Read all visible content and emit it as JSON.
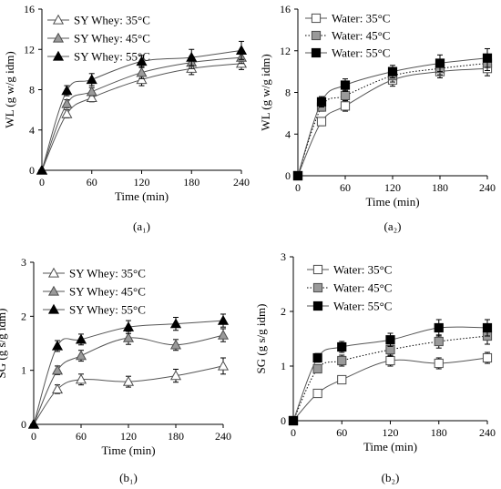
{
  "chart_data": [
    {
      "id": "a1",
      "type": "line",
      "panel_label": "(a₁)",
      "xlabel": "Time (min)",
      "ylabel": "WL (g w/g idm)",
      "xlim": [
        0,
        240
      ],
      "ylim": [
        0,
        16
      ],
      "x_ticks": [
        0,
        60,
        120,
        180,
        240
      ],
      "y_ticks": [
        0,
        4,
        8,
        12,
        16
      ],
      "grid": false,
      "legend_position": "top-left",
      "x": [
        0,
        30,
        60,
        120,
        180,
        240
      ],
      "series": [
        {
          "name": "SY Whey: 35°C",
          "marker": "triangle",
          "fill": "#ffffff",
          "line_style": "solid",
          "values": [
            0,
            5.6,
            7.2,
            9.0,
            10.1,
            10.6
          ],
          "errors": [
            0,
            0.4,
            0.4,
            0.6,
            0.6,
            0.6
          ]
        },
        {
          "name": "SY Whey: 45°C",
          "marker": "triangle",
          "fill": "#9a9a9a",
          "line_style": "solid",
          "values": [
            0,
            6.6,
            7.8,
            9.7,
            10.7,
            11.2
          ],
          "errors": [
            0,
            0.4,
            0.4,
            0.6,
            0.6,
            0.6
          ]
        },
        {
          "name": "SY Whey: 55°C",
          "marker": "triangle",
          "fill": "#000000",
          "line_style": "solid",
          "values": [
            0,
            7.9,
            9.0,
            10.8,
            11.2,
            11.9
          ],
          "errors": [
            0,
            0.5,
            0.6,
            0.6,
            0.8,
            0.9
          ]
        }
      ]
    },
    {
      "id": "a2",
      "type": "line",
      "panel_label": "(a₂)",
      "xlabel": "Time (min)",
      "ylabel": "WL (g w/g idm)",
      "xlim": [
        0,
        240
      ],
      "ylim": [
        0,
        16
      ],
      "x_ticks": [
        0,
        60,
        120,
        180,
        240
      ],
      "y_ticks": [
        0,
        4,
        8,
        12,
        16
      ],
      "grid": false,
      "legend_position": "top-left",
      "x": [
        0,
        30,
        60,
        120,
        180,
        240
      ],
      "series": [
        {
          "name": "Water: 35°C",
          "marker": "square",
          "fill": "#ffffff",
          "line_style": "solid",
          "values": [
            0,
            5.2,
            6.7,
            9.2,
            10.0,
            10.3
          ],
          "errors": [
            0,
            0.4,
            0.5,
            0.6,
            0.6,
            0.7
          ]
        },
        {
          "name": "Water: 45°C",
          "marker": "square",
          "fill": "#9a9a9a",
          "line_style": "dotted",
          "values": [
            0,
            6.6,
            7.7,
            9.6,
            10.3,
            10.8
          ],
          "errors": [
            0,
            0.4,
            0.5,
            0.6,
            0.6,
            0.7
          ]
        },
        {
          "name": "Water: 55°C",
          "marker": "square",
          "fill": "#000000",
          "line_style": "solid",
          "values": [
            0,
            7.1,
            8.7,
            10.0,
            10.8,
            11.3
          ],
          "errors": [
            0,
            0.5,
            0.6,
            0.6,
            0.8,
            0.9
          ]
        }
      ]
    },
    {
      "id": "b1",
      "type": "line",
      "panel_label": "(b₁)",
      "xlabel": "Time (min)",
      "ylabel": "SG (g s/g idm)",
      "xlim": [
        0,
        240
      ],
      "ylim": [
        0,
        3
      ],
      "x_ticks": [
        0,
        60,
        120,
        180,
        240
      ],
      "y_ticks": [
        0,
        1,
        2,
        3
      ],
      "grid": false,
      "legend_position": "top-left",
      "x": [
        0,
        30,
        60,
        120,
        180,
        240
      ],
      "series": [
        {
          "name": "SY Whey: 35°C",
          "marker": "triangle",
          "fill": "#ffffff",
          "line_style": "solid",
          "values": [
            0,
            0.65,
            0.83,
            0.79,
            0.9,
            1.08
          ],
          "errors": [
            0,
            0.08,
            0.1,
            0.1,
            0.12,
            0.15
          ]
        },
        {
          "name": "SY Whey: 45°C",
          "marker": "triangle",
          "fill": "#9a9a9a",
          "line_style": "solid",
          "values": [
            0,
            1.0,
            1.27,
            1.6,
            1.47,
            1.65
          ],
          "errors": [
            0,
            0.08,
            0.1,
            0.12,
            0.1,
            0.12
          ]
        },
        {
          "name": "SY Whey: 55°C",
          "marker": "triangle",
          "fill": "#000000",
          "line_style": "solid",
          "values": [
            0,
            1.45,
            1.57,
            1.8,
            1.86,
            1.92
          ],
          "errors": [
            0,
            0.1,
            0.1,
            0.12,
            0.12,
            0.12
          ]
        }
      ]
    },
    {
      "id": "b2",
      "type": "line",
      "panel_label": "(b₂)",
      "xlabel": "Time (min)",
      "ylabel": "SG (g s/g idm)",
      "xlim": [
        0,
        240
      ],
      "ylim": [
        0,
        3
      ],
      "x_ticks": [
        0,
        60,
        120,
        180,
        240
      ],
      "y_ticks": [
        0,
        1,
        2,
        3
      ],
      "grid": false,
      "legend_position": "top-left",
      "x": [
        0,
        30,
        60,
        120,
        180,
        240
      ],
      "series": [
        {
          "name": "Water: 35°C",
          "marker": "square",
          "fill": "#ffffff",
          "line_style": "solid",
          "values": [
            0,
            0.5,
            0.75,
            1.1,
            1.05,
            1.15
          ],
          "errors": [
            0,
            0.05,
            0.07,
            0.1,
            0.1,
            0.1
          ]
        },
        {
          "name": "Water: 45°C",
          "marker": "square",
          "fill": "#9a9a9a",
          "line_style": "dotted",
          "values": [
            0,
            0.95,
            1.1,
            1.3,
            1.45,
            1.55
          ],
          "errors": [
            0,
            0.07,
            0.1,
            0.12,
            0.12,
            0.15
          ]
        },
        {
          "name": "Water: 55°C",
          "marker": "square",
          "fill": "#000000",
          "line_style": "solid",
          "values": [
            0,
            1.15,
            1.35,
            1.48,
            1.7,
            1.7
          ],
          "errors": [
            0,
            0.08,
            0.1,
            0.12,
            0.15,
            0.15
          ]
        }
      ]
    }
  ]
}
